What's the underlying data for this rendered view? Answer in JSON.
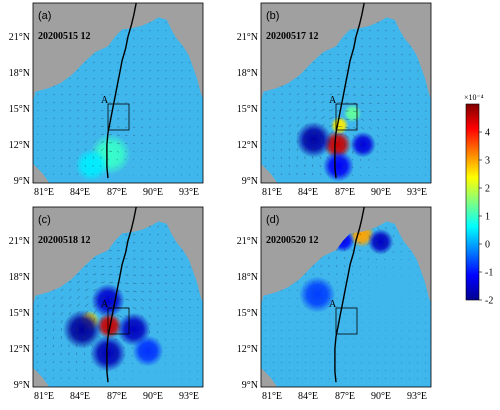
{
  "chart_data": [
    {
      "type": "heatmap",
      "panel_label": "(a)",
      "date": "20200515 12",
      "xticks": [
        "81°E",
        "84°E",
        "87°E",
        "90°E",
        "93°E"
      ],
      "yticks": [
        "21°N",
        "18°N",
        "15°N",
        "12°N",
        "9°N"
      ],
      "box_label": "A",
      "hotspots": [
        {
          "lon": 86.6,
          "lat": 11.2,
          "value": 1.0,
          "r": 1.6
        },
        {
          "lon": 85.0,
          "lat": 10.3,
          "value": 0.5,
          "r": 1.3
        }
      ]
    },
    {
      "type": "heatmap",
      "panel_label": "(b)",
      "date": "20200517 12",
      "xticks": [
        "81°E",
        "84°E",
        "87°E",
        "90°E",
        "93°E"
      ],
      "yticks": [
        "21°N",
        "18°N",
        "15°N",
        "12°N",
        "9°N"
      ],
      "box_label": "A",
      "hotspots": [
        {
          "lon": 86.5,
          "lat": 12.0,
          "value": 4.5,
          "r": 1.1
        },
        {
          "lon": 86.7,
          "lat": 13.6,
          "value": 2.5,
          "r": 0.7
        },
        {
          "lon": 84.5,
          "lat": 12.4,
          "value": -1.8,
          "r": 1.4
        },
        {
          "lon": 86.6,
          "lat": 10.2,
          "value": -1.2,
          "r": 1.2
        },
        {
          "lon": 88.7,
          "lat": 12.0,
          "value": -1.4,
          "r": 1.0
        },
        {
          "lon": 87.8,
          "lat": 14.6,
          "value": 1.3,
          "r": 0.7
        }
      ]
    },
    {
      "type": "heatmap",
      "panel_label": "(c)",
      "date": "20200518 12",
      "xticks": [
        "81°E",
        "84°E",
        "87°E",
        "90°E",
        "93°E"
      ],
      "yticks": [
        "21°N",
        "18°N",
        "15°N",
        "12°N",
        "9°N"
      ],
      "box_label": "A",
      "hotspots": [
        {
          "lon": 86.5,
          "lat": 13.9,
          "value": 4.5,
          "r": 1.0
        },
        {
          "lon": 84.8,
          "lat": 14.3,
          "value": 2.5,
          "r": 0.8
        },
        {
          "lon": 84.2,
          "lat": 13.6,
          "value": -1.9,
          "r": 1.5
        },
        {
          "lon": 86.4,
          "lat": 11.6,
          "value": -1.7,
          "r": 1.4
        },
        {
          "lon": 88.6,
          "lat": 13.6,
          "value": -1.6,
          "r": 1.3
        },
        {
          "lon": 86.4,
          "lat": 16.0,
          "value": -1.5,
          "r": 1.3
        },
        {
          "lon": 89.8,
          "lat": 11.8,
          "value": -0.8,
          "r": 1.2
        }
      ]
    },
    {
      "type": "heatmap",
      "panel_label": "(d)",
      "date": "20200520 12",
      "xticks": [
        "81°E",
        "84°E",
        "87°E",
        "90°E",
        "93°E"
      ],
      "yticks": [
        "21°N",
        "18°N",
        "15°N",
        "12°N",
        "9°N"
      ],
      "box_label": "A",
      "hotspots": [
        {
          "lon": 88.6,
          "lat": 21.5,
          "value": 3.0,
          "r": 1.0
        },
        {
          "lon": 90.2,
          "lat": 20.9,
          "value": -1.6,
          "r": 1.0
        },
        {
          "lon": 87.0,
          "lat": 21.0,
          "value": -1.2,
          "r": 0.9
        },
        {
          "lon": 84.8,
          "lat": 16.5,
          "value": -0.7,
          "r": 1.4
        }
      ]
    }
  ],
  "colorbar": {
    "exponent_label": "×10⁻⁴",
    "ticks": [
      "4",
      "3",
      "2",
      "1",
      "0",
      "-1",
      "-2"
    ],
    "min": -2,
    "max": 5,
    "colors": [
      "#00008f",
      "#0000ff",
      "#0080ff",
      "#00ffff",
      "#80ff80",
      "#ffff00",
      "#ff8000",
      "#ff0000",
      "#800000"
    ]
  }
}
